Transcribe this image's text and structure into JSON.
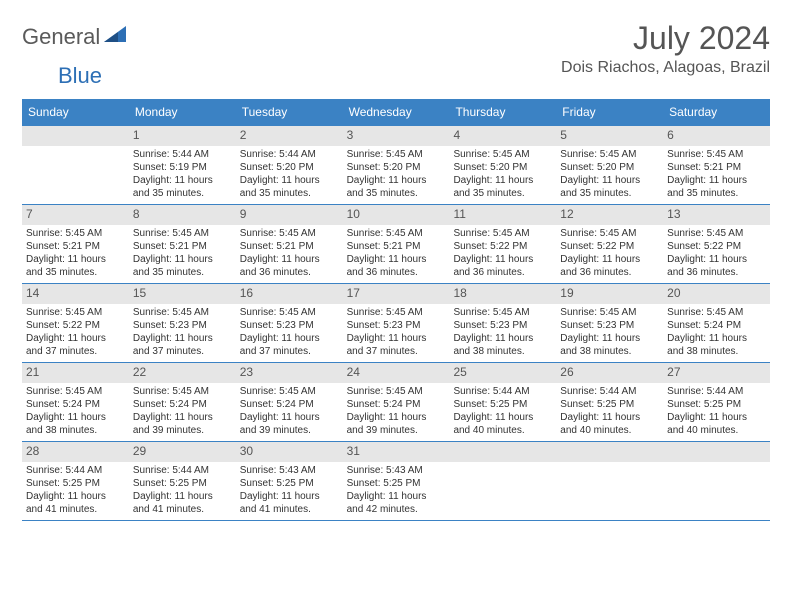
{
  "brand": {
    "part1": "General",
    "part2": "Blue"
  },
  "title": "July 2024",
  "location": "Dois Riachos, Alagoas, Brazil",
  "colors": {
    "header_bg": "#3b82c4",
    "header_text": "#ffffff",
    "daynum_bg": "#e6e6e6",
    "text": "#333333",
    "title_color": "#555555",
    "border": "#3b82c4"
  },
  "day_headers": [
    "Sunday",
    "Monday",
    "Tuesday",
    "Wednesday",
    "Thursday",
    "Friday",
    "Saturday"
  ],
  "weeks": [
    [
      {
        "day": "",
        "sunrise": "",
        "sunset": "",
        "daylight": ""
      },
      {
        "day": "1",
        "sunrise": "Sunrise: 5:44 AM",
        "sunset": "Sunset: 5:19 PM",
        "daylight": "Daylight: 11 hours and 35 minutes."
      },
      {
        "day": "2",
        "sunrise": "Sunrise: 5:44 AM",
        "sunset": "Sunset: 5:20 PM",
        "daylight": "Daylight: 11 hours and 35 minutes."
      },
      {
        "day": "3",
        "sunrise": "Sunrise: 5:45 AM",
        "sunset": "Sunset: 5:20 PM",
        "daylight": "Daylight: 11 hours and 35 minutes."
      },
      {
        "day": "4",
        "sunrise": "Sunrise: 5:45 AM",
        "sunset": "Sunset: 5:20 PM",
        "daylight": "Daylight: 11 hours and 35 minutes."
      },
      {
        "day": "5",
        "sunrise": "Sunrise: 5:45 AM",
        "sunset": "Sunset: 5:20 PM",
        "daylight": "Daylight: 11 hours and 35 minutes."
      },
      {
        "day": "6",
        "sunrise": "Sunrise: 5:45 AM",
        "sunset": "Sunset: 5:21 PM",
        "daylight": "Daylight: 11 hours and 35 minutes."
      }
    ],
    [
      {
        "day": "7",
        "sunrise": "Sunrise: 5:45 AM",
        "sunset": "Sunset: 5:21 PM",
        "daylight": "Daylight: 11 hours and 35 minutes."
      },
      {
        "day": "8",
        "sunrise": "Sunrise: 5:45 AM",
        "sunset": "Sunset: 5:21 PM",
        "daylight": "Daylight: 11 hours and 35 minutes."
      },
      {
        "day": "9",
        "sunrise": "Sunrise: 5:45 AM",
        "sunset": "Sunset: 5:21 PM",
        "daylight": "Daylight: 11 hours and 36 minutes."
      },
      {
        "day": "10",
        "sunrise": "Sunrise: 5:45 AM",
        "sunset": "Sunset: 5:21 PM",
        "daylight": "Daylight: 11 hours and 36 minutes."
      },
      {
        "day": "11",
        "sunrise": "Sunrise: 5:45 AM",
        "sunset": "Sunset: 5:22 PM",
        "daylight": "Daylight: 11 hours and 36 minutes."
      },
      {
        "day": "12",
        "sunrise": "Sunrise: 5:45 AM",
        "sunset": "Sunset: 5:22 PM",
        "daylight": "Daylight: 11 hours and 36 minutes."
      },
      {
        "day": "13",
        "sunrise": "Sunrise: 5:45 AM",
        "sunset": "Sunset: 5:22 PM",
        "daylight": "Daylight: 11 hours and 36 minutes."
      }
    ],
    [
      {
        "day": "14",
        "sunrise": "Sunrise: 5:45 AM",
        "sunset": "Sunset: 5:22 PM",
        "daylight": "Daylight: 11 hours and 37 minutes."
      },
      {
        "day": "15",
        "sunrise": "Sunrise: 5:45 AM",
        "sunset": "Sunset: 5:23 PM",
        "daylight": "Daylight: 11 hours and 37 minutes."
      },
      {
        "day": "16",
        "sunrise": "Sunrise: 5:45 AM",
        "sunset": "Sunset: 5:23 PM",
        "daylight": "Daylight: 11 hours and 37 minutes."
      },
      {
        "day": "17",
        "sunrise": "Sunrise: 5:45 AM",
        "sunset": "Sunset: 5:23 PM",
        "daylight": "Daylight: 11 hours and 37 minutes."
      },
      {
        "day": "18",
        "sunrise": "Sunrise: 5:45 AM",
        "sunset": "Sunset: 5:23 PM",
        "daylight": "Daylight: 11 hours and 38 minutes."
      },
      {
        "day": "19",
        "sunrise": "Sunrise: 5:45 AM",
        "sunset": "Sunset: 5:23 PM",
        "daylight": "Daylight: 11 hours and 38 minutes."
      },
      {
        "day": "20",
        "sunrise": "Sunrise: 5:45 AM",
        "sunset": "Sunset: 5:24 PM",
        "daylight": "Daylight: 11 hours and 38 minutes."
      }
    ],
    [
      {
        "day": "21",
        "sunrise": "Sunrise: 5:45 AM",
        "sunset": "Sunset: 5:24 PM",
        "daylight": "Daylight: 11 hours and 38 minutes."
      },
      {
        "day": "22",
        "sunrise": "Sunrise: 5:45 AM",
        "sunset": "Sunset: 5:24 PM",
        "daylight": "Daylight: 11 hours and 39 minutes."
      },
      {
        "day": "23",
        "sunrise": "Sunrise: 5:45 AM",
        "sunset": "Sunset: 5:24 PM",
        "daylight": "Daylight: 11 hours and 39 minutes."
      },
      {
        "day": "24",
        "sunrise": "Sunrise: 5:45 AM",
        "sunset": "Sunset: 5:24 PM",
        "daylight": "Daylight: 11 hours and 39 minutes."
      },
      {
        "day": "25",
        "sunrise": "Sunrise: 5:44 AM",
        "sunset": "Sunset: 5:25 PM",
        "daylight": "Daylight: 11 hours and 40 minutes."
      },
      {
        "day": "26",
        "sunrise": "Sunrise: 5:44 AM",
        "sunset": "Sunset: 5:25 PM",
        "daylight": "Daylight: 11 hours and 40 minutes."
      },
      {
        "day": "27",
        "sunrise": "Sunrise: 5:44 AM",
        "sunset": "Sunset: 5:25 PM",
        "daylight": "Daylight: 11 hours and 40 minutes."
      }
    ],
    [
      {
        "day": "28",
        "sunrise": "Sunrise: 5:44 AM",
        "sunset": "Sunset: 5:25 PM",
        "daylight": "Daylight: 11 hours and 41 minutes."
      },
      {
        "day": "29",
        "sunrise": "Sunrise: 5:44 AM",
        "sunset": "Sunset: 5:25 PM",
        "daylight": "Daylight: 11 hours and 41 minutes."
      },
      {
        "day": "30",
        "sunrise": "Sunrise: 5:43 AM",
        "sunset": "Sunset: 5:25 PM",
        "daylight": "Daylight: 11 hours and 41 minutes."
      },
      {
        "day": "31",
        "sunrise": "Sunrise: 5:43 AM",
        "sunset": "Sunset: 5:25 PM",
        "daylight": "Daylight: 11 hours and 42 minutes."
      },
      {
        "day": "",
        "sunrise": "",
        "sunset": "",
        "daylight": ""
      },
      {
        "day": "",
        "sunrise": "",
        "sunset": "",
        "daylight": ""
      },
      {
        "day": "",
        "sunrise": "",
        "sunset": "",
        "daylight": ""
      }
    ]
  ]
}
